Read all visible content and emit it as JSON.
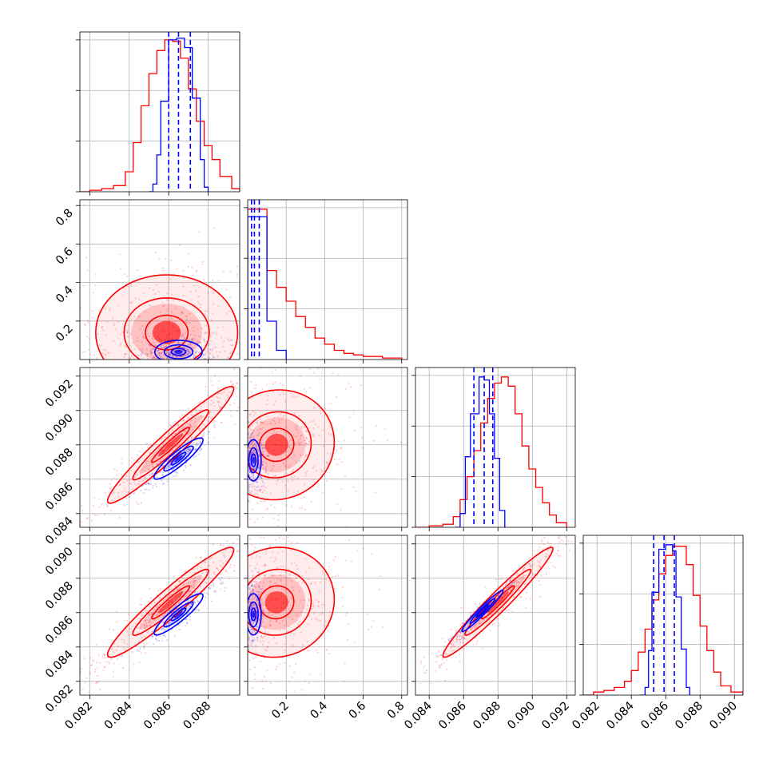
{
  "chart_data": {
    "type": "corner",
    "colors": {
      "red": "#ff0000",
      "blue": "#0000ff"
    },
    "grid": true,
    "params": [
      {
        "range": [
          0.0815,
          0.0896
        ],
        "ticks": [
          "0.082",
          "0.084",
          "0.086",
          "0.088"
        ],
        "tick_values": [
          0.082,
          0.084,
          0.086,
          0.088
        ]
      },
      {
        "range": [
          0.0,
          0.83
        ],
        "ticks": [
          "0.2",
          "0.4",
          "0.6",
          "0.8"
        ],
        "tick_values": [
          0.2,
          0.4,
          0.6,
          0.8
        ]
      },
      {
        "range": [
          0.0832,
          0.0925
        ],
        "ticks": [
          "0.084",
          "0.086",
          "0.088",
          "0.090",
          "0.092"
        ],
        "tick_values": [
          0.084,
          0.086,
          0.088,
          0.09,
          0.092
        ]
      },
      {
        "range": [
          0.0812,
          0.0905
        ],
        "ticks": [
          "0.082",
          "0.084",
          "0.086",
          "0.088",
          "0.090"
        ],
        "tick_values": [
          0.082,
          0.084,
          0.086,
          0.088,
          0.09
        ]
      }
    ],
    "histograms": [
      {
        "param": 0,
        "red": [
          [
            0.0815,
            0.0
          ],
          [
            0.082,
            0.01
          ],
          [
            0.0826,
            0.02
          ],
          [
            0.0832,
            0.04
          ],
          [
            0.0838,
            0.13
          ],
          [
            0.0842,
            0.32
          ],
          [
            0.0846,
            0.56
          ],
          [
            0.085,
            0.77
          ],
          [
            0.0854,
            0.92
          ],
          [
            0.0858,
            0.99
          ],
          [
            0.0862,
            0.98
          ],
          [
            0.0866,
            0.87
          ],
          [
            0.087,
            0.67
          ],
          [
            0.0874,
            0.46
          ],
          [
            0.0878,
            0.3
          ],
          [
            0.0882,
            0.21
          ],
          [
            0.0886,
            0.1
          ],
          [
            0.0892,
            0.02
          ],
          [
            0.0896,
            0.0
          ]
        ],
        "blue": [
          [
            0.085,
            0.0
          ],
          [
            0.0852,
            0.05
          ],
          [
            0.0854,
            0.24
          ],
          [
            0.0856,
            0.59
          ],
          [
            0.086,
            0.99
          ],
          [
            0.0864,
            1.0
          ],
          [
            0.0868,
            0.94
          ],
          [
            0.0872,
            0.61
          ],
          [
            0.0876,
            0.21
          ],
          [
            0.0878,
            0.03
          ],
          [
            0.088,
            0.0
          ]
        ],
        "quantiles": [
          0.086,
          0.0865,
          0.0871
        ]
      },
      {
        "param": 1,
        "red": [
          [
            0.0,
            0.98
          ],
          [
            0.05,
            0.98
          ],
          [
            0.1,
            0.58
          ],
          [
            0.15,
            0.47
          ],
          [
            0.2,
            0.38
          ],
          [
            0.25,
            0.28
          ],
          [
            0.3,
            0.21
          ],
          [
            0.35,
            0.14
          ],
          [
            0.4,
            0.1
          ],
          [
            0.45,
            0.06
          ],
          [
            0.5,
            0.04
          ],
          [
            0.55,
            0.03
          ],
          [
            0.6,
            0.02
          ],
          [
            0.7,
            0.01
          ],
          [
            0.8,
            0.0
          ]
        ],
        "blue": [
          [
            0.0,
            0.93
          ],
          [
            0.1,
            0.25
          ],
          [
            0.15,
            0.06
          ],
          [
            0.2,
            0.0
          ]
        ],
        "quantiles": [
          0.02,
          0.035,
          0.06
        ]
      },
      {
        "param": 2,
        "red": [
          [
            0.0832,
            0.0
          ],
          [
            0.084,
            0.01
          ],
          [
            0.0848,
            0.02
          ],
          [
            0.0854,
            0.07
          ],
          [
            0.0858,
            0.18
          ],
          [
            0.0862,
            0.33
          ],
          [
            0.0866,
            0.5
          ],
          [
            0.087,
            0.68
          ],
          [
            0.0874,
            0.84
          ],
          [
            0.0878,
            0.94
          ],
          [
            0.0882,
            0.98
          ],
          [
            0.0886,
            0.92
          ],
          [
            0.089,
            0.74
          ],
          [
            0.0894,
            0.53
          ],
          [
            0.0898,
            0.38
          ],
          [
            0.0902,
            0.26
          ],
          [
            0.0906,
            0.16
          ],
          [
            0.091,
            0.08
          ],
          [
            0.0914,
            0.03
          ],
          [
            0.092,
            0.0
          ]
        ],
        "blue": [
          [
            0.0855,
            0.0
          ],
          [
            0.0858,
            0.09
          ],
          [
            0.0861,
            0.46
          ],
          [
            0.0864,
            0.74
          ],
          [
            0.0869,
            0.98
          ],
          [
            0.0872,
            0.96
          ],
          [
            0.0875,
            0.74
          ],
          [
            0.0878,
            0.45
          ],
          [
            0.0881,
            0.11
          ],
          [
            0.0884,
            0.0
          ]
        ],
        "quantiles": [
          0.0866,
          0.0872,
          0.0877
        ]
      },
      {
        "param": 3,
        "red": [
          [
            0.0812,
            0.0
          ],
          [
            0.0818,
            0.02
          ],
          [
            0.0824,
            0.03
          ],
          [
            0.083,
            0.05
          ],
          [
            0.0836,
            0.09
          ],
          [
            0.084,
            0.16
          ],
          [
            0.0844,
            0.28
          ],
          [
            0.0848,
            0.43
          ],
          [
            0.0852,
            0.62
          ],
          [
            0.0856,
            0.79
          ],
          [
            0.086,
            0.91
          ],
          [
            0.0864,
            0.97
          ],
          [
            0.0868,
            0.97
          ],
          [
            0.0872,
            0.85
          ],
          [
            0.0876,
            0.65
          ],
          [
            0.088,
            0.45
          ],
          [
            0.0884,
            0.29
          ],
          [
            0.0888,
            0.15
          ],
          [
            0.0892,
            0.06
          ],
          [
            0.0898,
            0.02
          ],
          [
            0.0905,
            0.0
          ]
        ],
        "blue": [
          [
            0.0845,
            0.0
          ],
          [
            0.0848,
            0.05
          ],
          [
            0.085,
            0.29
          ],
          [
            0.0852,
            0.67
          ],
          [
            0.0856,
            0.95
          ],
          [
            0.086,
            0.98
          ],
          [
            0.0864,
            0.94
          ],
          [
            0.0866,
            0.64
          ],
          [
            0.0869,
            0.3
          ],
          [
            0.0872,
            0.05
          ],
          [
            0.0874,
            0.0
          ]
        ],
        "quantiles": [
          0.0853,
          0.0859,
          0.0865
        ]
      }
    ],
    "pairs": [
      {
        "x": 0,
        "y": 1,
        "red": {
          "mean": [
            0.0859,
            0.14
          ],
          "std": [
            0.0018,
            0.15
          ],
          "rho": 0.0
        },
        "blue": {
          "mean": [
            0.0865,
            0.04
          ],
          "std": [
            0.0006,
            0.03
          ],
          "rho": 0.0
        }
      },
      {
        "x": 0,
        "y": 2,
        "red": {
          "mean": [
            0.0861,
            0.088
          ],
          "std": [
            0.0016,
            0.0017
          ],
          "rho": 0.96
        },
        "blue": {
          "mean": [
            0.0865,
            0.0872
          ],
          "std": [
            0.00062,
            0.0006
          ],
          "rho": 0.9
        }
      },
      {
        "x": 1,
        "y": 2,
        "red": {
          "mean": [
            0.15,
            0.088
          ],
          "std": [
            0.15,
            0.0016
          ],
          "rho": 0.05
        },
        "blue": {
          "mean": [
            0.03,
            0.0871
          ],
          "std": [
            0.02,
            0.0006
          ],
          "rho": 0.0
        }
      },
      {
        "x": 0,
        "y": 3,
        "red": {
          "mean": [
            0.0861,
            0.0866
          ],
          "std": [
            0.0016,
            0.0016
          ],
          "rho": 0.95
        },
        "blue": {
          "mean": [
            0.0865,
            0.0859
          ],
          "std": [
            0.00062,
            0.0006
          ],
          "rho": 0.9
        }
      },
      {
        "x": 1,
        "y": 3,
        "red": {
          "mean": [
            0.15,
            0.0866
          ],
          "std": [
            0.15,
            0.0016
          ],
          "rho": 0.05
        },
        "blue": {
          "mean": [
            0.03,
            0.0859
          ],
          "std": [
            0.02,
            0.0006
          ],
          "rho": 0.0
        }
      },
      {
        "x": 2,
        "y": 3,
        "red": {
          "mean": [
            0.088,
            0.0866
          ],
          "std": [
            0.0016,
            0.0016
          ],
          "rho": 0.97
        },
        "blue": {
          "mean": [
            0.0871,
            0.0861
          ],
          "std": [
            0.0006,
            0.0006
          ],
          "rho": 0.97
        }
      }
    ]
  }
}
